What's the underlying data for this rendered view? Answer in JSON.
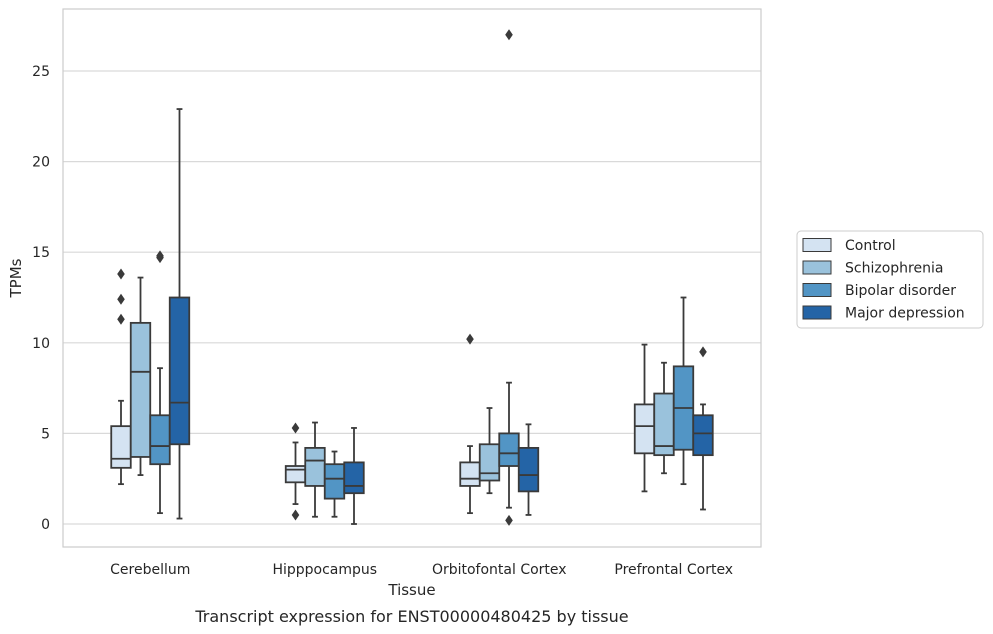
{
  "caption": "Transcript expression for ENST00000480425 by tissue",
  "chart_data": {
    "type": "box",
    "xlabel": "Tissue",
    "ylabel": "TPMs",
    "ylim": [
      -1.2,
      28.5
    ],
    "yticks": [
      0,
      5,
      10,
      15,
      20,
      25
    ],
    "grid": "horizontal",
    "legend_position": "right",
    "categories": [
      "Cerebellum",
      "Hipppocampus",
      "Orbitofontal Cortex",
      "Prefrontal Cortex"
    ],
    "series": [
      {
        "name": "Control",
        "color": "#d4e3f2",
        "boxes": [
          {
            "whislo": 2.2,
            "q1": 3.1,
            "med": 3.6,
            "q3": 5.4,
            "whishi": 6.8,
            "fliers": [
              13.8,
              12.4,
              11.3
            ]
          },
          {
            "whislo": 1.1,
            "q1": 2.3,
            "med": 3.0,
            "q3": 3.2,
            "whishi": 4.5,
            "fliers": [
              5.3,
              0.5
            ]
          },
          {
            "whislo": 0.6,
            "q1": 2.1,
            "med": 2.5,
            "q3": 3.4,
            "whishi": 4.3,
            "fliers": [
              10.2
            ]
          },
          {
            "whislo": 1.8,
            "q1": 3.9,
            "med": 5.4,
            "q3": 6.6,
            "whishi": 9.9,
            "fliers": []
          }
        ]
      },
      {
        "name": "Schizophrenia",
        "color": "#9ac2dc",
        "boxes": [
          {
            "whislo": 2.7,
            "q1": 3.7,
            "med": 8.4,
            "q3": 11.1,
            "whishi": 13.6,
            "fliers": []
          },
          {
            "whislo": 0.4,
            "q1": 2.1,
            "med": 3.5,
            "q3": 4.2,
            "whishi": 5.6,
            "fliers": []
          },
          {
            "whislo": 1.7,
            "q1": 2.4,
            "med": 2.8,
            "q3": 4.4,
            "whishi": 6.4,
            "fliers": []
          },
          {
            "whislo": 2.8,
            "q1": 3.8,
            "med": 4.3,
            "q3": 7.2,
            "whishi": 8.9,
            "fliers": []
          }
        ]
      },
      {
        "name": "Bipolar disorder",
        "color": "#5295c5",
        "boxes": [
          {
            "whislo": 0.6,
            "q1": 3.3,
            "med": 4.3,
            "q3": 6.0,
            "whishi": 8.6,
            "fliers": [
              14.8,
              14.7
            ]
          },
          {
            "whislo": 0.4,
            "q1": 1.4,
            "med": 2.5,
            "q3": 3.3,
            "whishi": 4.0,
            "fliers": []
          },
          {
            "whislo": 0.9,
            "q1": 3.2,
            "med": 3.9,
            "q3": 5.0,
            "whishi": 7.8,
            "fliers": [
              27.0,
              0.2
            ]
          },
          {
            "whislo": 2.2,
            "q1": 4.1,
            "med": 6.4,
            "q3": 8.7,
            "whishi": 12.5,
            "fliers": []
          }
        ]
      },
      {
        "name": "Major depression",
        "color": "#2464a6",
        "boxes": [
          {
            "whislo": 0.3,
            "q1": 4.4,
            "med": 6.7,
            "q3": 12.5,
            "whishi": 22.9,
            "fliers": []
          },
          {
            "whislo": 0.0,
            "q1": 1.7,
            "med": 2.1,
            "q3": 3.4,
            "whishi": 5.3,
            "fliers": []
          },
          {
            "whislo": 0.5,
            "q1": 1.8,
            "med": 2.7,
            "q3": 4.2,
            "whishi": 5.5,
            "fliers": []
          },
          {
            "whislo": 0.8,
            "q1": 3.8,
            "med": 5.0,
            "q3": 6.0,
            "whishi": 6.6,
            "fliers": [
              9.5
            ]
          }
        ]
      }
    ]
  }
}
